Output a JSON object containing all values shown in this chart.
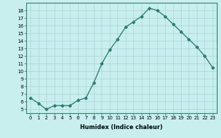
{
  "x": [
    0,
    1,
    2,
    3,
    4,
    5,
    6,
    7,
    8,
    9,
    10,
    11,
    12,
    13,
    14,
    15,
    16,
    17,
    18,
    19,
    20,
    21,
    22,
    23
  ],
  "y": [
    6.5,
    5.8,
    5.0,
    5.5,
    5.5,
    5.5,
    6.2,
    6.5,
    8.5,
    11.0,
    12.8,
    14.2,
    15.8,
    16.5,
    17.2,
    18.3,
    18.0,
    17.2,
    16.2,
    15.2,
    14.2,
    13.2,
    12.0,
    10.5
  ],
  "line_color": "#2d7d6e",
  "marker": "D",
  "marker_size": 2,
  "bg_color": "#c8eeee",
  "grid_color": "#aad4d4",
  "xlabel": "Humidex (Indice chaleur)",
  "xlim": [
    -0.5,
    23.5
  ],
  "ylim": [
    4.5,
    19
  ],
  "xticks": [
    0,
    1,
    2,
    3,
    4,
    5,
    6,
    7,
    8,
    9,
    10,
    11,
    12,
    13,
    14,
    15,
    16,
    17,
    18,
    19,
    20,
    21,
    22,
    23
  ],
  "yticks": [
    5,
    6,
    7,
    8,
    9,
    10,
    11,
    12,
    13,
    14,
    15,
    16,
    17,
    18
  ],
  "tick_fontsize": 5,
  "xlabel_fontsize": 6,
  "linewidth": 1.0
}
